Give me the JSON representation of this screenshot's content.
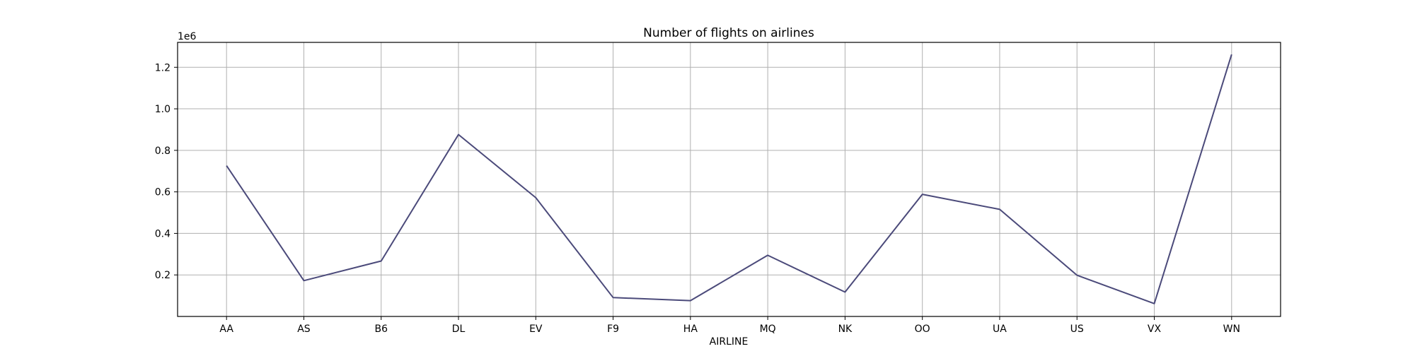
{
  "chart_data": {
    "type": "line",
    "title": "Number of flights on airlines",
    "xlabel": "AIRLINE",
    "ylabel": "",
    "y_offset_label": "1e6",
    "categories": [
      "AA",
      "AS",
      "B6",
      "DL",
      "EV",
      "F9",
      "HA",
      "MQ",
      "NK",
      "OO",
      "UA",
      "US",
      "VX",
      "WN"
    ],
    "series": [
      {
        "values": [
          725984,
          172521,
          267048,
          875881,
          571977,
          90836,
          76272,
          294632,
          117379,
          588353,
          515723,
          198715,
          61903,
          1261855
        ],
        "color": "#4b4a7a"
      }
    ],
    "yticks": [
      0.2,
      0.4,
      0.6,
      0.8,
      1.0,
      1.2
    ],
    "ytick_labels": [
      "0.2",
      "0.4",
      "0.6",
      "0.8",
      "1.0",
      "1.2"
    ],
    "ylim": [
      0.0,
      1.32
    ],
    "grid": true
  }
}
